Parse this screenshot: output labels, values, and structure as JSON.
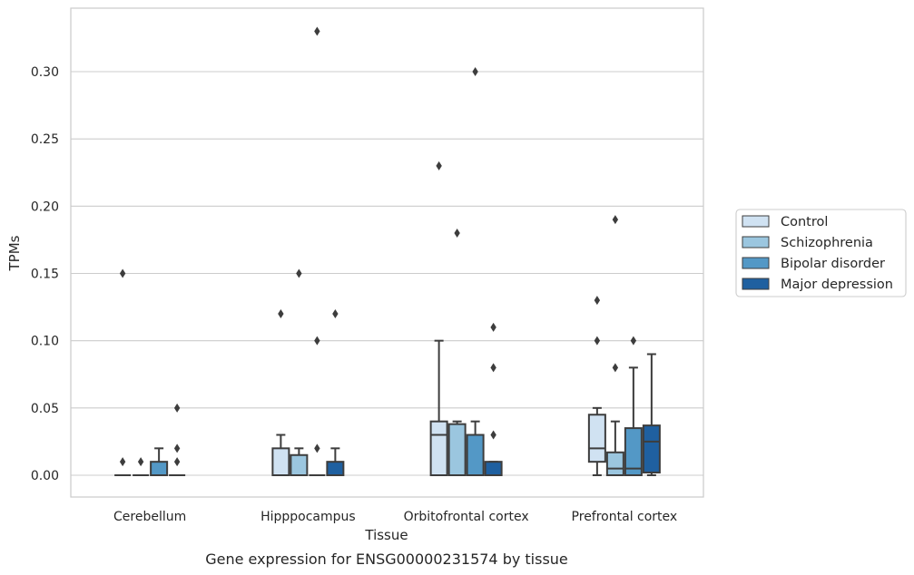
{
  "chart_data": {
    "type": "box",
    "title": "Gene expression for ENSG00000231574 by tissue",
    "xlabel": "Tissue",
    "ylabel": "TPMs",
    "ylim": [
      -0.016,
      0.347
    ],
    "yticks": [
      0.0,
      0.05,
      0.1,
      0.15,
      0.2,
      0.25,
      0.3
    ],
    "ytick_labels": [
      "0.00",
      "0.05",
      "0.10",
      "0.15",
      "0.20",
      "0.25",
      "0.30"
    ],
    "grid": "horizontal",
    "legend_position": "right",
    "categories": [
      "Cerebellum",
      "Hipppocampus",
      "Orbitofrontal cortex",
      "Prefrontal cortex"
    ],
    "series": [
      {
        "name": "Control",
        "color": "#d0e2f2",
        "boxes": [
          {
            "whislo": 0,
            "q1": 0,
            "med": 0,
            "q3": 0,
            "whishi": 0,
            "fliers": [
              0.15,
              0.01
            ]
          },
          {
            "whislo": 0,
            "q1": 0,
            "med": 0,
            "q3": 0.02,
            "whishi": 0.03,
            "fliers": [
              0.12
            ]
          },
          {
            "whislo": 0,
            "q1": 0,
            "med": 0.03,
            "q3": 0.04,
            "whishi": 0.1,
            "fliers": [
              0.23
            ]
          },
          {
            "whislo": 0,
            "q1": 0.01,
            "med": 0.02,
            "q3": 0.045,
            "whishi": 0.05,
            "fliers": [
              0.13,
              0.1
            ]
          }
        ]
      },
      {
        "name": "Schizophrenia",
        "color": "#9bc6df",
        "boxes": [
          {
            "whislo": 0,
            "q1": 0,
            "med": 0,
            "q3": 0,
            "whishi": 0,
            "fliers": [
              0.01
            ]
          },
          {
            "whislo": 0,
            "q1": 0,
            "med": 0,
            "q3": 0.015,
            "whishi": 0.02,
            "fliers": [
              0.15
            ]
          },
          {
            "whislo": 0,
            "q1": 0,
            "med": 0,
            "q3": 0.038,
            "whishi": 0.04,
            "fliers": [
              0.18
            ]
          },
          {
            "whislo": 0,
            "q1": 0,
            "med": 0.005,
            "q3": 0.017,
            "whishi": 0.04,
            "fliers": [
              0.19,
              0.08
            ]
          }
        ]
      },
      {
        "name": "Bipolar disorder",
        "color": "#5398c6",
        "boxes": [
          {
            "whislo": 0,
            "q1": 0,
            "med": 0,
            "q3": 0.01,
            "whishi": 0.02,
            "fliers": []
          },
          {
            "whislo": 0,
            "q1": 0,
            "med": 0,
            "q3": 0,
            "whishi": 0,
            "fliers": [
              0.33,
              0.1,
              0.02
            ]
          },
          {
            "whislo": 0,
            "q1": 0,
            "med": 0,
            "q3": 0.03,
            "whishi": 0.04,
            "fliers": [
              0.3
            ]
          },
          {
            "whislo": 0,
            "q1": 0,
            "med": 0.005,
            "q3": 0.035,
            "whishi": 0.08,
            "fliers": [
              0.1
            ]
          }
        ]
      },
      {
        "name": "Major depression",
        "color": "#1f60a0",
        "boxes": [
          {
            "whislo": 0,
            "q1": 0,
            "med": 0,
            "q3": 0,
            "whishi": 0,
            "fliers": [
              0.05,
              0.02,
              0.01
            ]
          },
          {
            "whislo": 0,
            "q1": 0,
            "med": 0,
            "q3": 0.01,
            "whishi": 0.02,
            "fliers": [
              0.12
            ]
          },
          {
            "whislo": 0,
            "q1": 0,
            "med": 0,
            "q3": 0.01,
            "whishi": 0.01,
            "fliers": [
              0.11,
              0.08,
              0.03
            ]
          },
          {
            "whislo": 0,
            "q1": 0.002,
            "med": 0.025,
            "q3": 0.037,
            "whishi": 0.09,
            "fliers": []
          }
        ]
      }
    ]
  }
}
